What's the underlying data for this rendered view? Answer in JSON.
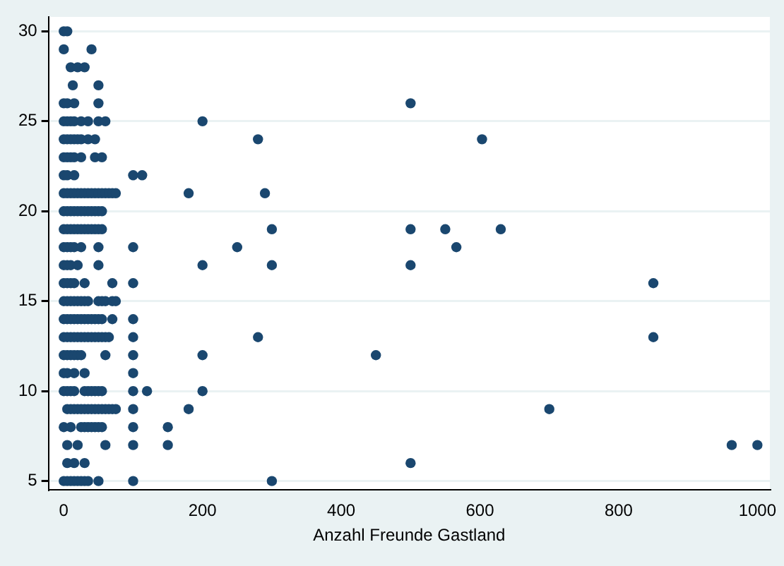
{
  "chart_data": {
    "type": "scatter",
    "xlabel": "Anzahl Freunde Gastland",
    "xlim": [
      -22,
      1018
    ],
    "xticks": [
      0,
      200,
      400,
      600,
      800,
      1000
    ],
    "ylim": [
      4.5,
      30.8
    ],
    "yticks": [
      5,
      10,
      15,
      20,
      25,
      30
    ],
    "grid": "y",
    "legend": false,
    "marker": "circle",
    "series": [
      {
        "color": "#1a476f",
        "x": [
          0,
          5,
          0,
          40,
          10,
          20,
          30,
          13,
          50,
          0,
          5,
          15,
          50,
          0,
          5,
          10,
          15,
          25,
          35,
          50,
          60,
          0,
          5,
          10,
          15,
          20,
          25,
          35,
          45,
          0,
          5,
          10,
          15,
          25,
          45,
          55,
          0,
          5,
          15,
          100,
          113,
          0,
          5,
          10,
          15,
          20,
          25,
          30,
          35,
          40,
          45,
          50,
          55,
          60,
          65,
          70,
          75,
          0,
          5,
          10,
          15,
          20,
          25,
          30,
          35,
          40,
          45,
          50,
          55,
          0,
          5,
          10,
          15,
          20,
          25,
          30,
          35,
          40,
          45,
          50,
          55,
          0,
          5,
          10,
          15,
          25,
          50,
          100,
          0,
          5,
          10,
          20,
          50,
          0,
          5,
          10,
          15,
          30,
          70,
          100,
          0,
          5,
          10,
          15,
          20,
          25,
          30,
          35,
          50,
          55,
          60,
          70,
          75,
          0,
          5,
          10,
          15,
          20,
          25,
          30,
          35,
          40,
          45,
          50,
          55,
          70,
          100,
          0,
          5,
          10,
          15,
          20,
          25,
          30,
          35,
          40,
          45,
          50,
          55,
          60,
          65,
          100,
          0,
          5,
          10,
          15,
          20,
          25,
          60,
          100,
          0,
          5,
          15,
          30,
          100,
          0,
          5,
          10,
          15,
          30,
          35,
          40,
          45,
          50,
          55,
          100,
          120,
          5,
          10,
          15,
          20,
          25,
          30,
          35,
          40,
          45,
          50,
          55,
          60,
          65,
          70,
          75,
          100,
          0,
          10,
          25,
          30,
          35,
          40,
          45,
          50,
          55,
          100,
          5,
          20,
          60,
          100,
          5,
          15,
          30,
          0,
          5,
          10,
          15,
          20,
          25,
          30,
          35,
          50,
          100,
          200,
          500,
          280,
          603,
          180,
          290,
          300,
          500,
          550,
          630,
          250,
          566,
          200,
          300,
          500,
          850,
          850,
          280,
          200,
          450,
          200,
          180,
          150,
          150,
          500,
          300,
          700,
          963,
          1000
        ],
        "values": [
          30,
          30,
          29,
          29,
          28,
          28,
          28,
          27,
          27,
          26,
          26,
          26,
          26,
          25,
          25,
          25,
          25,
          25,
          25,
          25,
          25,
          24,
          24,
          24,
          24,
          24,
          24,
          24,
          24,
          23,
          23,
          23,
          23,
          23,
          23,
          23,
          22,
          22,
          22,
          22,
          22,
          21,
          21,
          21,
          21,
          21,
          21,
          21,
          21,
          21,
          21,
          21,
          21,
          21,
          21,
          21,
          21,
          20,
          20,
          20,
          20,
          20,
          20,
          20,
          20,
          20,
          20,
          20,
          20,
          19,
          19,
          19,
          19,
          19,
          19,
          19,
          19,
          19,
          19,
          19,
          19,
          18,
          18,
          18,
          18,
          18,
          18,
          18,
          17,
          17,
          17,
          17,
          17,
          16,
          16,
          16,
          16,
          16,
          16,
          16,
          15,
          15,
          15,
          15,
          15,
          15,
          15,
          15,
          15,
          15,
          15,
          15,
          15,
          14,
          14,
          14,
          14,
          14,
          14,
          14,
          14,
          14,
          14,
          14,
          14,
          14,
          14,
          13,
          13,
          13,
          13,
          13,
          13,
          13,
          13,
          13,
          13,
          13,
          13,
          13,
          13,
          13,
          12,
          12,
          12,
          12,
          12,
          12,
          12,
          12,
          11,
          11,
          11,
          11,
          11,
          10,
          10,
          10,
          10,
          10,
          10,
          10,
          10,
          10,
          10,
          10,
          10,
          9,
          9,
          9,
          9,
          9,
          9,
          9,
          9,
          9,
          9,
          9,
          9,
          9,
          9,
          9,
          9,
          8,
          8,
          8,
          8,
          8,
          8,
          8,
          8,
          8,
          8,
          7,
          7,
          7,
          7,
          6,
          6,
          6,
          5,
          5,
          5,
          5,
          5,
          5,
          5,
          5,
          5,
          5,
          25,
          26,
          24,
          24,
          21,
          21,
          19,
          19,
          19,
          19,
          18,
          18,
          17,
          17,
          17,
          16,
          13,
          13,
          12,
          12,
          10,
          9,
          8,
          7,
          6,
          5,
          9,
          7,
          7
        ]
      }
    ]
  }
}
